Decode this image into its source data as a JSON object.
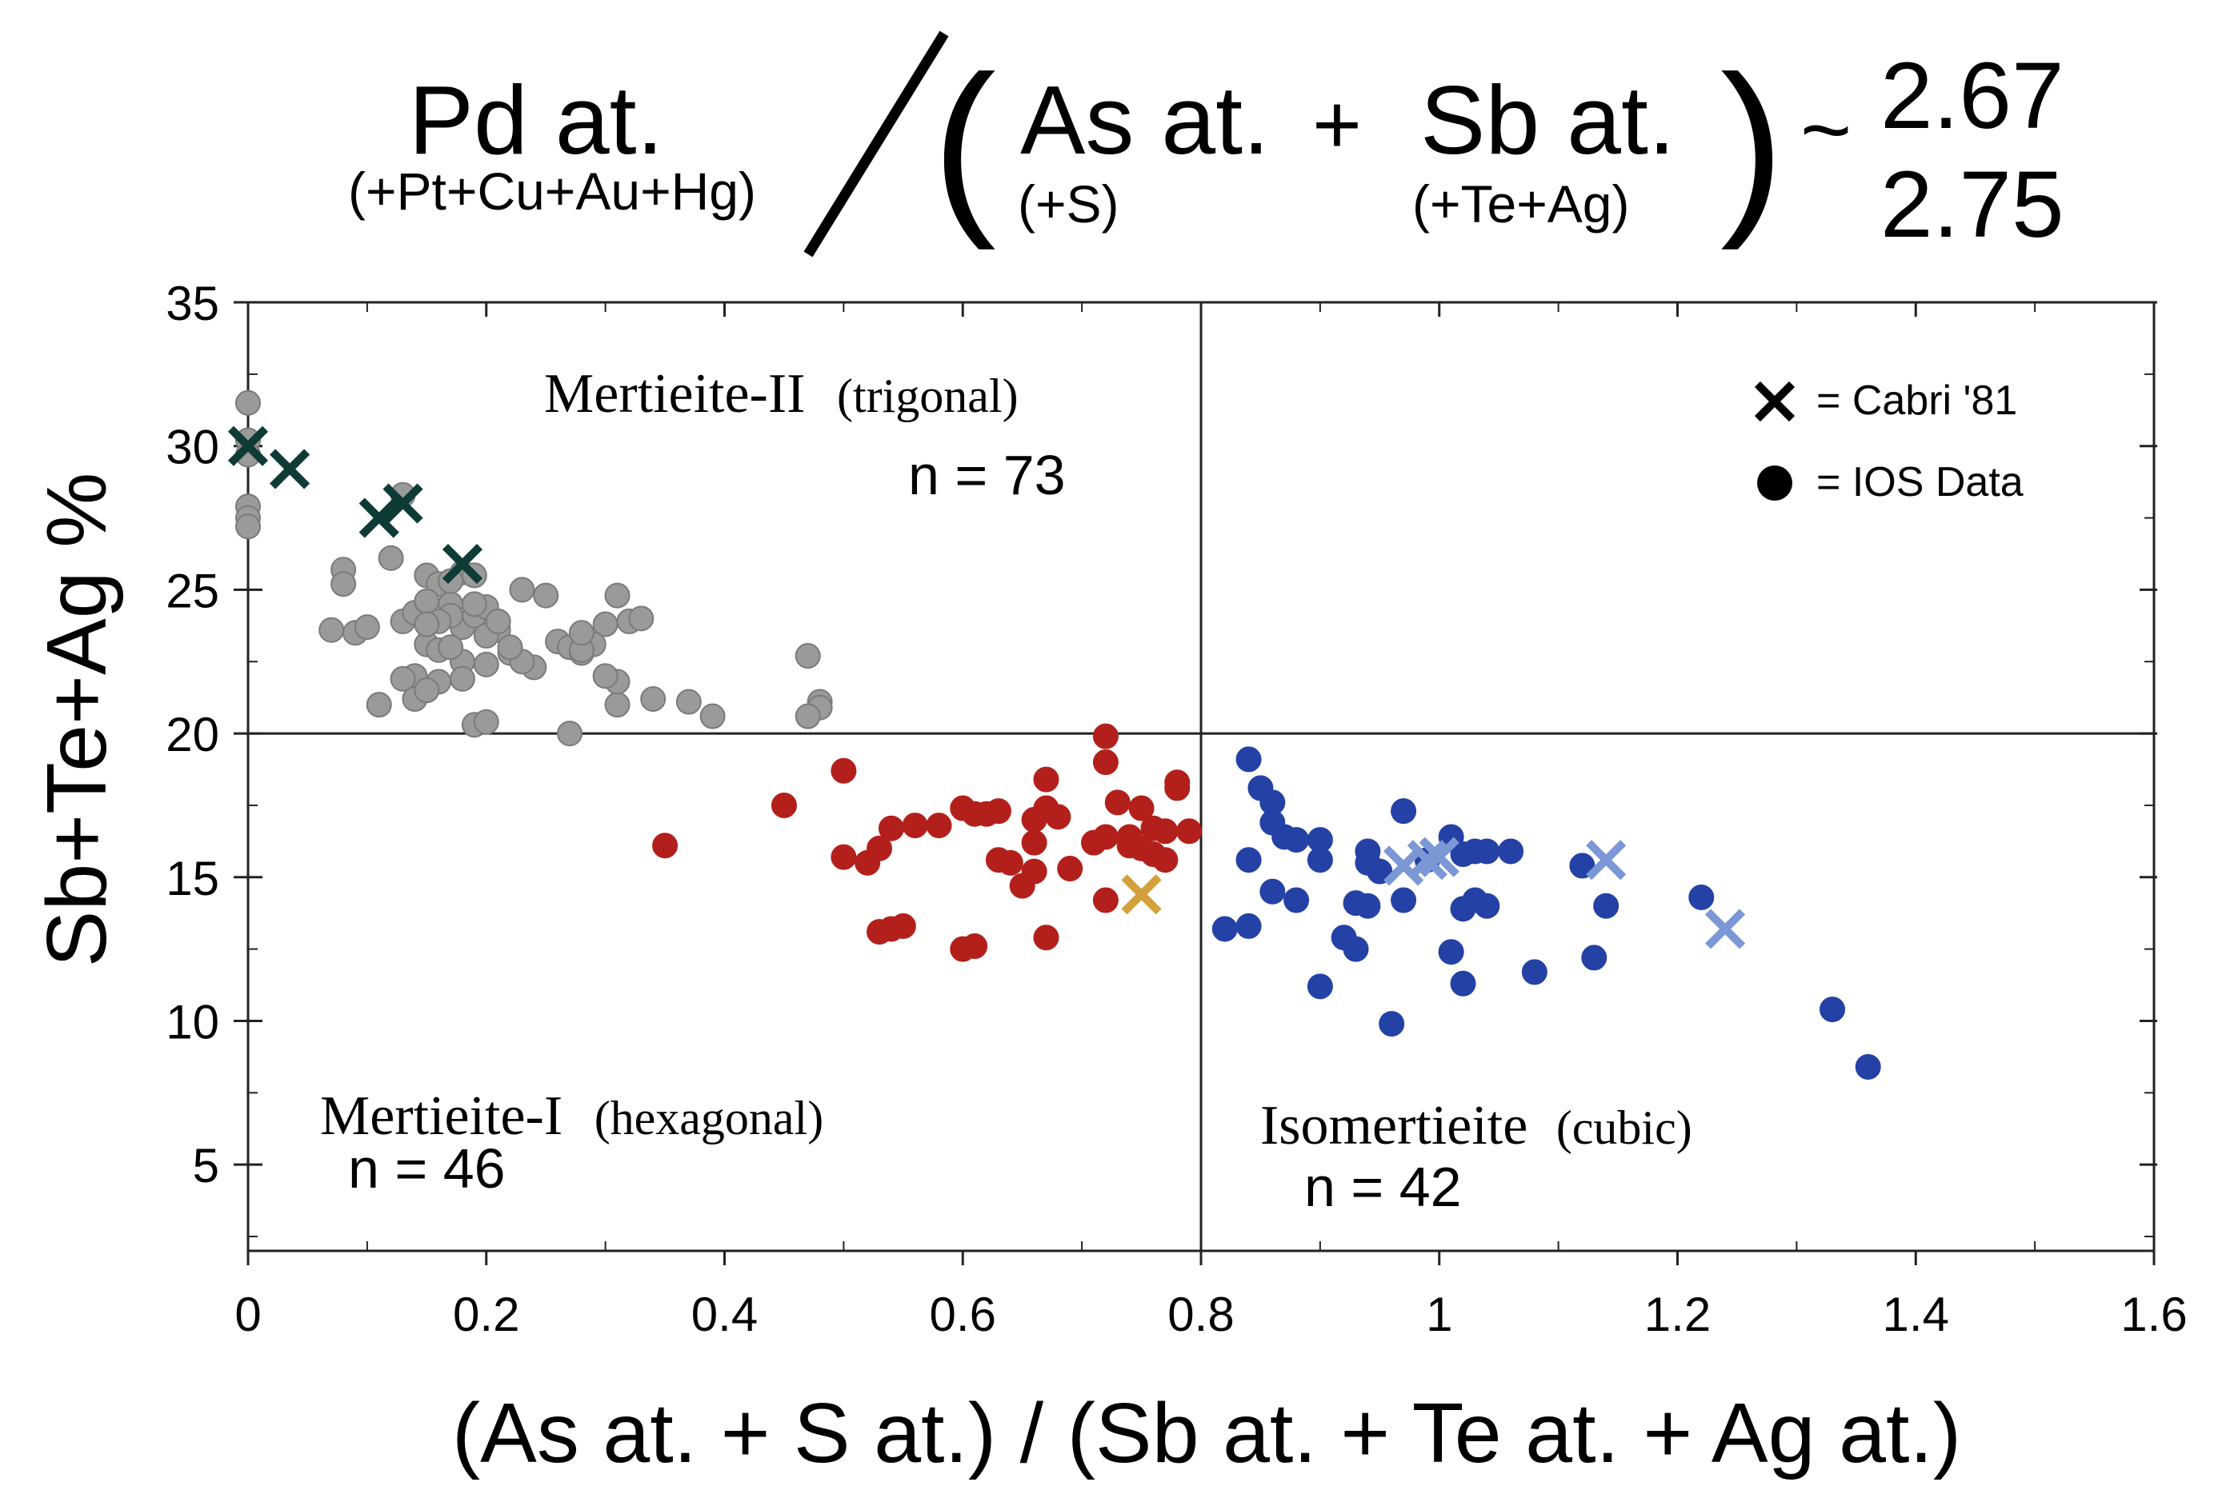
{
  "formula": {
    "numerator": "Pd at.",
    "numerator_sub": "(+Pt+Cu+Au+Hg)",
    "open_paren": "(",
    "close_paren": ")",
    "term1": "As at.",
    "term1_sub": "(+S)",
    "plus": "+",
    "term2": "Sb at.",
    "term2_sub": "(+Te+Ag)",
    "approx": "~",
    "ratio_top": "2.67",
    "ratio_bottom": "2.75"
  },
  "chart_data": {
    "type": "scatter",
    "xlabel": "(As at. + S at.) / (Sb at. + Te at. + Ag at.)",
    "ylabel": "Sb+Te+Ag %",
    "xlim": [
      0,
      1.6
    ],
    "ylim": [
      2,
      35
    ],
    "xticks": [
      0,
      0.2,
      0.4,
      0.6,
      0.8,
      1,
      1.2,
      1.4,
      1.6
    ],
    "xtick_labels": [
      "0",
      "0.2",
      "0.4",
      "0.6",
      "0.8",
      "1",
      "1.2",
      "1.4",
      "1.6"
    ],
    "yticks": [
      5,
      10,
      15,
      20,
      25,
      30,
      35
    ],
    "ytick_labels": [
      "5",
      "10",
      "15",
      "20",
      "25",
      "30",
      "35"
    ],
    "divider_x": 0.8,
    "divider_y": 20,
    "legend": [
      {
        "marker": "x",
        "label": "= Cabri '81"
      },
      {
        "marker": "circle",
        "label": "= IOS Data"
      }
    ],
    "annotations": [
      {
        "name": "Mertieite-II",
        "detail": "(trigonal)",
        "count": "n = 73"
      },
      {
        "name": "Mertieite-I",
        "detail": "(hexagonal)",
        "count": "n = 46"
      },
      {
        "name": "Isomertieite",
        "detail": "(cubic)",
        "count": "n = 42"
      }
    ],
    "series": [
      {
        "name": "Mertieite-II (IOS Data)",
        "marker": "circle",
        "color": "#9a9a9a",
        "points": [
          [
            0,
            31.5
          ],
          [
            0,
            30.2
          ],
          [
            0,
            29.7
          ],
          [
            0,
            27.9
          ],
          [
            0,
            27.5
          ],
          [
            0,
            27.2
          ],
          [
            0.12,
            26.1
          ],
          [
            0.13,
            28.3
          ],
          [
            0.15,
            25.5
          ],
          [
            0.16,
            25.2
          ],
          [
            0.18,
            25.6
          ],
          [
            0.19,
            25.5
          ],
          [
            0.08,
            25.7
          ],
          [
            0.08,
            25.2
          ],
          [
            0.07,
            23.6
          ],
          [
            0.09,
            23.5
          ],
          [
            0.1,
            23.7
          ],
          [
            0.13,
            23.9
          ],
          [
            0.14,
            24.2
          ],
          [
            0.15,
            23.1
          ],
          [
            0.16,
            22.9
          ],
          [
            0.17,
            24.5
          ],
          [
            0.18,
            23.7
          ],
          [
            0.19,
            24.1
          ],
          [
            0.2,
            24.4
          ],
          [
            0.21,
            23.6
          ],
          [
            0.22,
            22.8
          ],
          [
            0.2,
            22.4
          ],
          [
            0.23,
            25.0
          ],
          [
            0.25,
            24.8
          ],
          [
            0.26,
            23.2
          ],
          [
            0.27,
            23.0
          ],
          [
            0.28,
            22.8
          ],
          [
            0.3,
            23.8
          ],
          [
            0.31,
            24.8
          ],
          [
            0.32,
            23.9
          ],
          [
            0.33,
            24.0
          ],
          [
            0.29,
            23.1
          ],
          [
            0.28,
            22.9
          ],
          [
            0.24,
            22.3
          ],
          [
            0.14,
            22.0
          ],
          [
            0.13,
            21.9
          ],
          [
            0.11,
            21.0
          ],
          [
            0.14,
            21.2
          ],
          [
            0.19,
            20.3
          ],
          [
            0.2,
            20.4
          ],
          [
            0.27,
            20.0
          ],
          [
            0.31,
            21.0
          ],
          [
            0.31,
            21.8
          ],
          [
            0.34,
            21.2
          ],
          [
            0.37,
            21.1
          ],
          [
            0.39,
            20.6
          ],
          [
            0.47,
            22.7
          ],
          [
            0.48,
            21.1
          ],
          [
            0.48,
            20.9
          ],
          [
            0.47,
            20.6
          ],
          [
            0.17,
            24.1
          ],
          [
            0.2,
            23.4
          ],
          [
            0.16,
            23.9
          ],
          [
            0.18,
            22.5
          ],
          [
            0.21,
            23.9
          ],
          [
            0.23,
            22.5
          ],
          [
            0.3,
            22.0
          ],
          [
            0.22,
            23.0
          ],
          [
            0.15,
            24.6
          ],
          [
            0.17,
            25.3
          ],
          [
            0.19,
            24.5
          ],
          [
            0.18,
            21.9
          ],
          [
            0.16,
            21.8
          ],
          [
            0.28,
            23.5
          ],
          [
            0.15,
            23.8
          ],
          [
            0.17,
            23.0
          ],
          [
            0.15,
            21.5
          ]
        ]
      },
      {
        "name": "Mertieite-II (Cabri '81)",
        "marker": "x",
        "color": "#0e3b36",
        "points": [
          [
            0,
            30.0
          ],
          [
            0.035,
            29.2
          ],
          [
            0.11,
            27.5
          ],
          [
            0.13,
            28.0
          ],
          [
            0.18,
            25.9
          ]
        ]
      },
      {
        "name": "Mertieite-I (IOS Data)",
        "marker": "circle",
        "color": "#b3201c",
        "points": [
          [
            0.35,
            16.1
          ],
          [
            0.45,
            17.5
          ],
          [
            0.5,
            18.7
          ],
          [
            0.5,
            15.7
          ],
          [
            0.53,
            16.0
          ],
          [
            0.54,
            16.7
          ],
          [
            0.54,
            13.2
          ],
          [
            0.55,
            13.3
          ],
          [
            0.52,
            15.5
          ],
          [
            0.53,
            13.1
          ],
          [
            0.56,
            16.8
          ],
          [
            0.58,
            16.8
          ],
          [
            0.6,
            17.4
          ],
          [
            0.61,
            17.2
          ],
          [
            0.62,
            17.2
          ],
          [
            0.63,
            17.3
          ],
          [
            0.6,
            12.5
          ],
          [
            0.61,
            12.6
          ],
          [
            0.63,
            15.6
          ],
          [
            0.64,
            15.5
          ],
          [
            0.65,
            14.7
          ],
          [
            0.66,
            17.0
          ],
          [
            0.66,
            16.2
          ],
          [
            0.67,
            17.4
          ],
          [
            0.67,
            18.4
          ],
          [
            0.68,
            17.1
          ],
          [
            0.66,
            15.2
          ],
          [
            0.69,
            15.3
          ],
          [
            0.67,
            12.9
          ],
          [
            0.72,
            19.9
          ],
          [
            0.72,
            19.0
          ],
          [
            0.73,
            17.6
          ],
          [
            0.71,
            16.2
          ],
          [
            0.72,
            16.4
          ],
          [
            0.74,
            16.1
          ],
          [
            0.75,
            17.4
          ],
          [
            0.76,
            16.7
          ],
          [
            0.77,
            16.6
          ],
          [
            0.78,
            18.1
          ],
          [
            0.79,
            16.6
          ],
          [
            0.72,
            14.2
          ],
          [
            0.75,
            16.0
          ],
          [
            0.76,
            15.8
          ],
          [
            0.77,
            15.6
          ],
          [
            0.78,
            18.3
          ],
          [
            0.74,
            16.4
          ]
        ]
      },
      {
        "name": "Mertieite-I (Cabri '81)",
        "marker": "x",
        "color": "#d4a03a",
        "points": [
          [
            0.75,
            14.4
          ]
        ]
      },
      {
        "name": "Isomertieite (IOS Data)",
        "marker": "circle",
        "color": "#2441a6",
        "points": [
          [
            0.84,
            19.1
          ],
          [
            0.85,
            18.1
          ],
          [
            0.86,
            17.6
          ],
          [
            0.86,
            16.9
          ],
          [
            0.87,
            16.4
          ],
          [
            0.84,
            15.6
          ],
          [
            0.82,
            13.2
          ],
          [
            0.84,
            13.3
          ],
          [
            0.86,
            14.5
          ],
          [
            0.88,
            14.2
          ],
          [
            0.88,
            16.3
          ],
          [
            0.9,
            16.3
          ],
          [
            0.9,
            15.6
          ],
          [
            0.9,
            11.2
          ],
          [
            0.92,
            12.9
          ],
          [
            0.93,
            12.5
          ],
          [
            0.93,
            14.1
          ],
          [
            0.94,
            15.9
          ],
          [
            0.94,
            15.5
          ],
          [
            0.95,
            15.2
          ],
          [
            0.94,
            14.0
          ],
          [
            0.96,
            9.9
          ],
          [
            0.97,
            14.2
          ],
          [
            0.97,
            17.3
          ],
          [
            0.99,
            15.6
          ],
          [
            1.01,
            16.4
          ],
          [
            1.02,
            15.8
          ],
          [
            1.03,
            15.9
          ],
          [
            1.04,
            15.9
          ],
          [
            1.06,
            15.9
          ],
          [
            1.01,
            12.4
          ],
          [
            1.02,
            11.3
          ],
          [
            1.02,
            13.9
          ],
          [
            1.03,
            14.2
          ],
          [
            1.04,
            14.0
          ],
          [
            1.08,
            11.7
          ],
          [
            1.12,
            15.4
          ],
          [
            1.13,
            12.2
          ],
          [
            1.14,
            14.0
          ],
          [
            1.22,
            14.3
          ],
          [
            1.33,
            10.4
          ],
          [
            1.36,
            8.4
          ]
        ]
      },
      {
        "name": "Isomertieite (Cabri '81)",
        "marker": "x",
        "color": "#7b97d6",
        "points": [
          [
            0.97,
            15.4
          ],
          [
            0.99,
            15.6
          ],
          [
            1.0,
            15.7
          ],
          [
            1.14,
            15.6
          ],
          [
            1.24,
            13.2
          ]
        ]
      }
    ]
  }
}
